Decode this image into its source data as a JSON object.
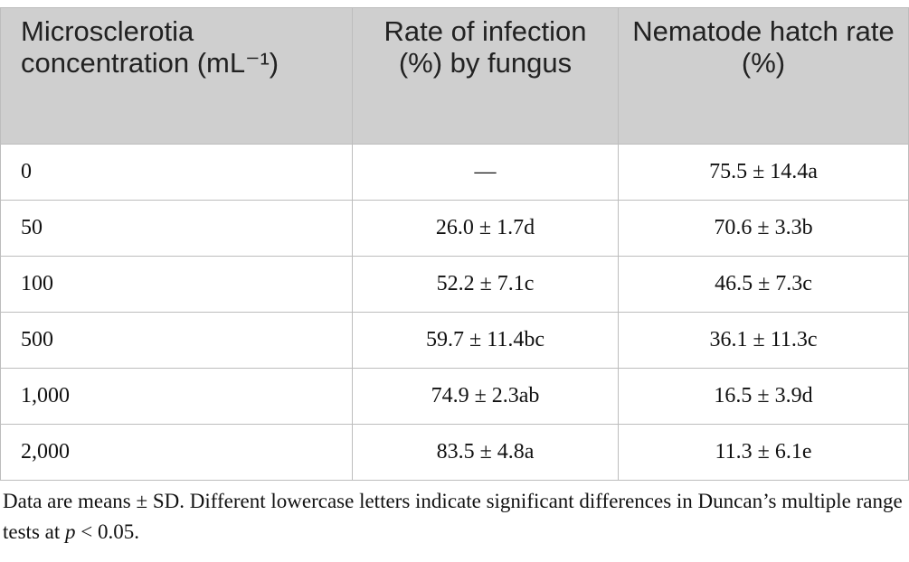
{
  "table": {
    "headers": {
      "concentration": "Microsclerotia concentration (mL⁻¹)",
      "infection": "Rate of infection (%) by fungus",
      "hatch": "Nematode hatch rate (%)"
    },
    "rows": [
      {
        "concentration": "0",
        "infection": "—",
        "hatch": "75.5 ± 14.4a"
      },
      {
        "concentration": "50",
        "infection": "26.0 ± 1.7d",
        "hatch": "70.6 ± 3.3b"
      },
      {
        "concentration": "100",
        "infection": "52.2 ± 7.1c",
        "hatch": "46.5 ± 7.3c"
      },
      {
        "concentration": "500",
        "infection": "59.7 ± 11.4bc",
        "hatch": "36.1 ± 11.3c"
      },
      {
        "concentration": "1,000",
        "infection": "74.9 ± 2.3ab",
        "hatch": "16.5 ± 3.9d"
      },
      {
        "concentration": "2,000",
        "infection": "83.5 ± 4.8a",
        "hatch": "11.3 ± 6.1e"
      }
    ]
  },
  "footnote": {
    "text_before": "Data are means ± SD. Different lowercase letters indicate significant differences in Duncan’s multiple range tests at ",
    "p_symbol": "p",
    "text_after": " < 0.05."
  },
  "colors": {
    "header_background": "#cfcfcf",
    "border": "#bdbdbd"
  }
}
